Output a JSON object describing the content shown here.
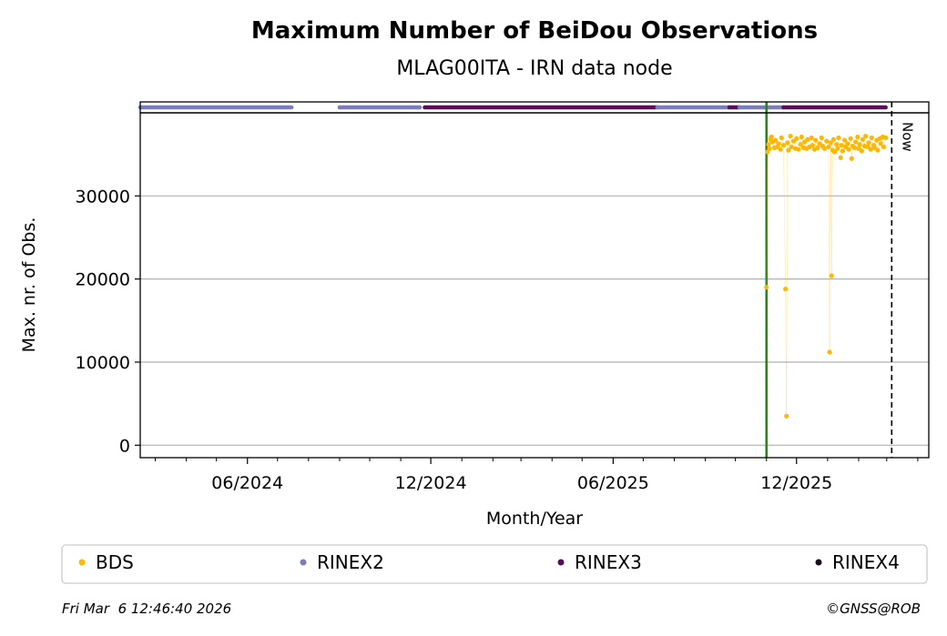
{
  "chart_data": {
    "type": "scatter",
    "title": "Maximum Number of BeiDou Observations",
    "subtitle": "MLAG00ITA - IRN data node",
    "xlabel": "Month/Year",
    "ylabel": "Max. nr. of Obs.",
    "xlim": [
      "2024-02-15",
      "2026-04-12"
    ],
    "ylim": [
      -1500,
      40000
    ],
    "x_ticks": [
      "2024-06-01",
      "2024-12-01",
      "2025-06-01",
      "2025-12-01"
    ],
    "x_tick_labels": [
      "06/2024",
      "12/2024",
      "06/2025",
      "12/2025"
    ],
    "y_ticks": [
      0,
      10000,
      20000,
      30000
    ],
    "y_tick_labels": [
      "0",
      "10000",
      "20000",
      "30000"
    ],
    "grid": "horizontal",
    "now_label": "Now",
    "now_date": "2026-03-06",
    "marker_date": "2025-11-01",
    "colors": {
      "BDS": "#ffb703",
      "RINEX2": "#7b7bbd",
      "RINEX3": "#5c0a5c",
      "RINEX4": "#1a0a1f",
      "marker_line_green": "#1a8a1a",
      "marker_line_red": "#d62728"
    },
    "rinex_availability": [
      {
        "name": "RINEX2",
        "start": "2024-02-15",
        "end": "2024-07-15"
      },
      {
        "name": "RINEX2",
        "start": "2024-09-01",
        "end": "2024-11-20"
      },
      {
        "name": "RINEX3",
        "start": "2024-11-25",
        "end": "2025-07-15"
      },
      {
        "name": "RINEX2",
        "start": "2025-07-15",
        "end": "2025-09-25"
      },
      {
        "name": "RINEX3",
        "start": "2025-09-25",
        "end": "2025-10-05"
      },
      {
        "name": "RINEX2",
        "start": "2025-10-05",
        "end": "2025-11-18"
      },
      {
        "name": "RINEX3",
        "start": "2025-11-18",
        "end": "2026-02-28"
      }
    ],
    "series": [
      {
        "name": "BDS",
        "points": [
          [
            "2025-11-01",
            19000
          ],
          [
            "2025-11-02",
            35300
          ],
          [
            "2025-11-03",
            36200
          ],
          [
            "2025-11-04",
            35700
          ],
          [
            "2025-11-05",
            36800
          ],
          [
            "2025-11-06",
            37100
          ],
          [
            "2025-11-07",
            36500
          ],
          [
            "2025-11-09",
            35800
          ],
          [
            "2025-11-10",
            36700
          ],
          [
            "2025-11-12",
            35900
          ],
          [
            "2025-11-13",
            36300
          ],
          [
            "2025-11-15",
            35600
          ],
          [
            "2025-11-16",
            37000
          ],
          [
            "2025-11-18",
            36100
          ],
          [
            "2025-11-20",
            18800
          ],
          [
            "2025-11-21",
            3500
          ],
          [
            "2025-11-22",
            36400
          ],
          [
            "2025-11-23",
            35500
          ],
          [
            "2025-11-25",
            37200
          ],
          [
            "2025-11-26",
            35900
          ],
          [
            "2025-11-28",
            36600
          ],
          [
            "2025-11-30",
            35700
          ],
          [
            "2025-12-01",
            36900
          ],
          [
            "2025-12-03",
            35600
          ],
          [
            "2025-12-05",
            36200
          ],
          [
            "2025-12-06",
            37100
          ],
          [
            "2025-12-08",
            35800
          ],
          [
            "2025-12-09",
            36500
          ],
          [
            "2025-12-11",
            35700
          ],
          [
            "2025-12-12",
            36800
          ],
          [
            "2025-12-14",
            35900
          ],
          [
            "2025-12-16",
            37000
          ],
          [
            "2025-12-17",
            36100
          ],
          [
            "2025-12-19",
            35600
          ],
          [
            "2025-12-20",
            36700
          ],
          [
            "2025-12-22",
            35800
          ],
          [
            "2025-12-24",
            36300
          ],
          [
            "2025-12-26",
            37000
          ],
          [
            "2025-12-27",
            36000
          ],
          [
            "2025-12-29",
            35700
          ],
          [
            "2025-12-31",
            36600
          ],
          [
            "2026-01-02",
            35900
          ],
          [
            "2026-01-03",
            11200
          ],
          [
            "2026-01-04",
            36400
          ],
          [
            "2026-01-05",
            20400
          ],
          [
            "2026-01-06",
            35500
          ],
          [
            "2026-01-07",
            36800
          ],
          [
            "2026-01-08",
            35300
          ],
          [
            "2026-01-10",
            36200
          ],
          [
            "2026-01-11",
            35700
          ],
          [
            "2026-01-12",
            37000
          ],
          [
            "2026-01-14",
            34600
          ],
          [
            "2026-01-15",
            36100
          ],
          [
            "2026-01-16",
            35400
          ],
          [
            "2026-01-18",
            36700
          ],
          [
            "2026-01-19",
            35900
          ],
          [
            "2026-01-21",
            36300
          ],
          [
            "2026-01-22",
            35600
          ],
          [
            "2026-01-24",
            36900
          ],
          [
            "2026-01-25",
            34500
          ],
          [
            "2026-01-26",
            36000
          ],
          [
            "2026-01-28",
            35800
          ],
          [
            "2026-01-29",
            36500
          ],
          [
            "2026-01-31",
            37100
          ],
          [
            "2026-02-01",
            35700
          ],
          [
            "2026-02-02",
            36200
          ],
          [
            "2026-02-04",
            35400
          ],
          [
            "2026-02-05",
            36800
          ],
          [
            "2026-02-07",
            36000
          ],
          [
            "2026-02-08",
            37200
          ],
          [
            "2026-02-10",
            35900
          ],
          [
            "2026-02-11",
            36400
          ],
          [
            "2026-02-13",
            35600
          ],
          [
            "2026-02-14",
            37000
          ],
          [
            "2026-02-16",
            36100
          ],
          [
            "2026-02-17",
            35800
          ],
          [
            "2026-02-19",
            36700
          ],
          [
            "2026-02-20",
            35500
          ],
          [
            "2026-02-22",
            36900
          ],
          [
            "2026-02-23",
            36300
          ],
          [
            "2026-02-25",
            37100
          ],
          [
            "2026-02-26",
            35900
          ],
          [
            "2026-02-28",
            37000
          ]
        ]
      }
    ],
    "legend": [
      "BDS",
      "RINEX2",
      "RINEX3",
      "RINEX4"
    ],
    "legend_position": "bottom"
  },
  "footer": {
    "timestamp": "Fri Mar  6 12:46:40 2026",
    "credit": "©GNSS@ROB"
  }
}
